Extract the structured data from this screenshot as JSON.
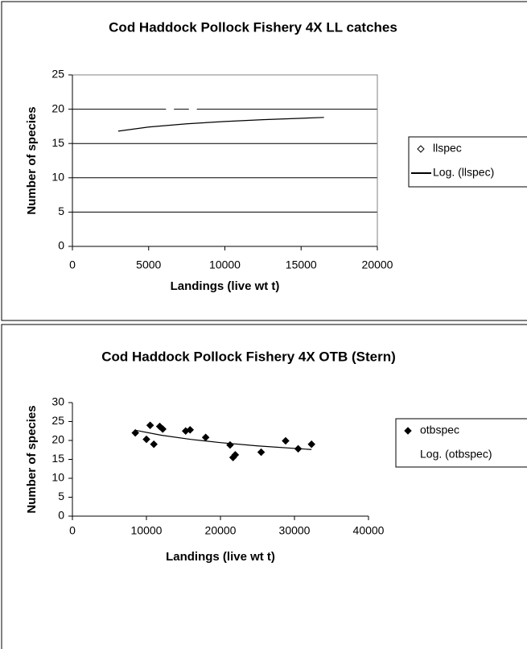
{
  "chart_data": [
    {
      "type": "scatter",
      "title": "Cod Haddock Pollock Fishery 4X LL catches",
      "x_label": "Landings (live wt t)",
      "y_label": "Number of species",
      "xlim": [
        0,
        20000
      ],
      "xticks": [
        0,
        5000,
        10000,
        15000,
        20000
      ],
      "ylim": [
        0,
        25
      ],
      "yticks": [
        0,
        5,
        10,
        15,
        20,
        25
      ],
      "grid": true,
      "series": [
        {
          "name": "llspec",
          "marker": "open-diamond",
          "color": "#000000",
          "marker_color": "#ffffff",
          "x": [
            6400,
            7900
          ],
          "values": [
            20,
            20
          ]
        },
        {
          "name": "Log. (llspec)",
          "marker": "line",
          "color": "#000000",
          "legend_swatch": true,
          "x": [
            3000,
            5000,
            7500,
            10000,
            12500,
            16500
          ],
          "values": [
            16.8,
            17.4,
            17.87,
            18.21,
            18.47,
            18.8
          ]
        }
      ]
    },
    {
      "type": "scatter",
      "title": "Cod Haddock Pollock Fishery 4X OTB (Stern)",
      "x_label": "Landings (live wt t)",
      "y_label": "Number of species",
      "xlim": [
        0,
        40000
      ],
      "xticks": [
        0,
        10000,
        20000,
        30000,
        40000
      ],
      "ylim": [
        0,
        30
      ],
      "yticks": [
        0,
        5,
        10,
        15,
        20,
        25,
        30
      ],
      "grid": false,
      "series": [
        {
          "name": "otbspec",
          "marker": "diamond",
          "color": "#000000",
          "marker_color": "#000000",
          "x": [
            8500,
            10000,
            10500,
            11000,
            11800,
            12200,
            15300,
            15900,
            18000,
            21300,
            21700,
            22000,
            25500,
            28800,
            30500,
            32300
          ],
          "values": [
            22,
            20.3,
            24,
            19,
            23.7,
            23,
            22.5,
            22.8,
            20.8,
            18.8,
            15.5,
            16.2,
            16.9,
            19.9,
            17.8,
            19
          ]
        },
        {
          "name": "Log. (otbspec)",
          "marker": "line",
          "color": "#000000",
          "legend_swatch": false,
          "x": [
            8500,
            12000,
            16000,
            20000,
            25000,
            32300
          ],
          "values": [
            22.7,
            21.38,
            20.28,
            19.43,
            18.57,
            17.6
          ]
        }
      ]
    }
  ]
}
